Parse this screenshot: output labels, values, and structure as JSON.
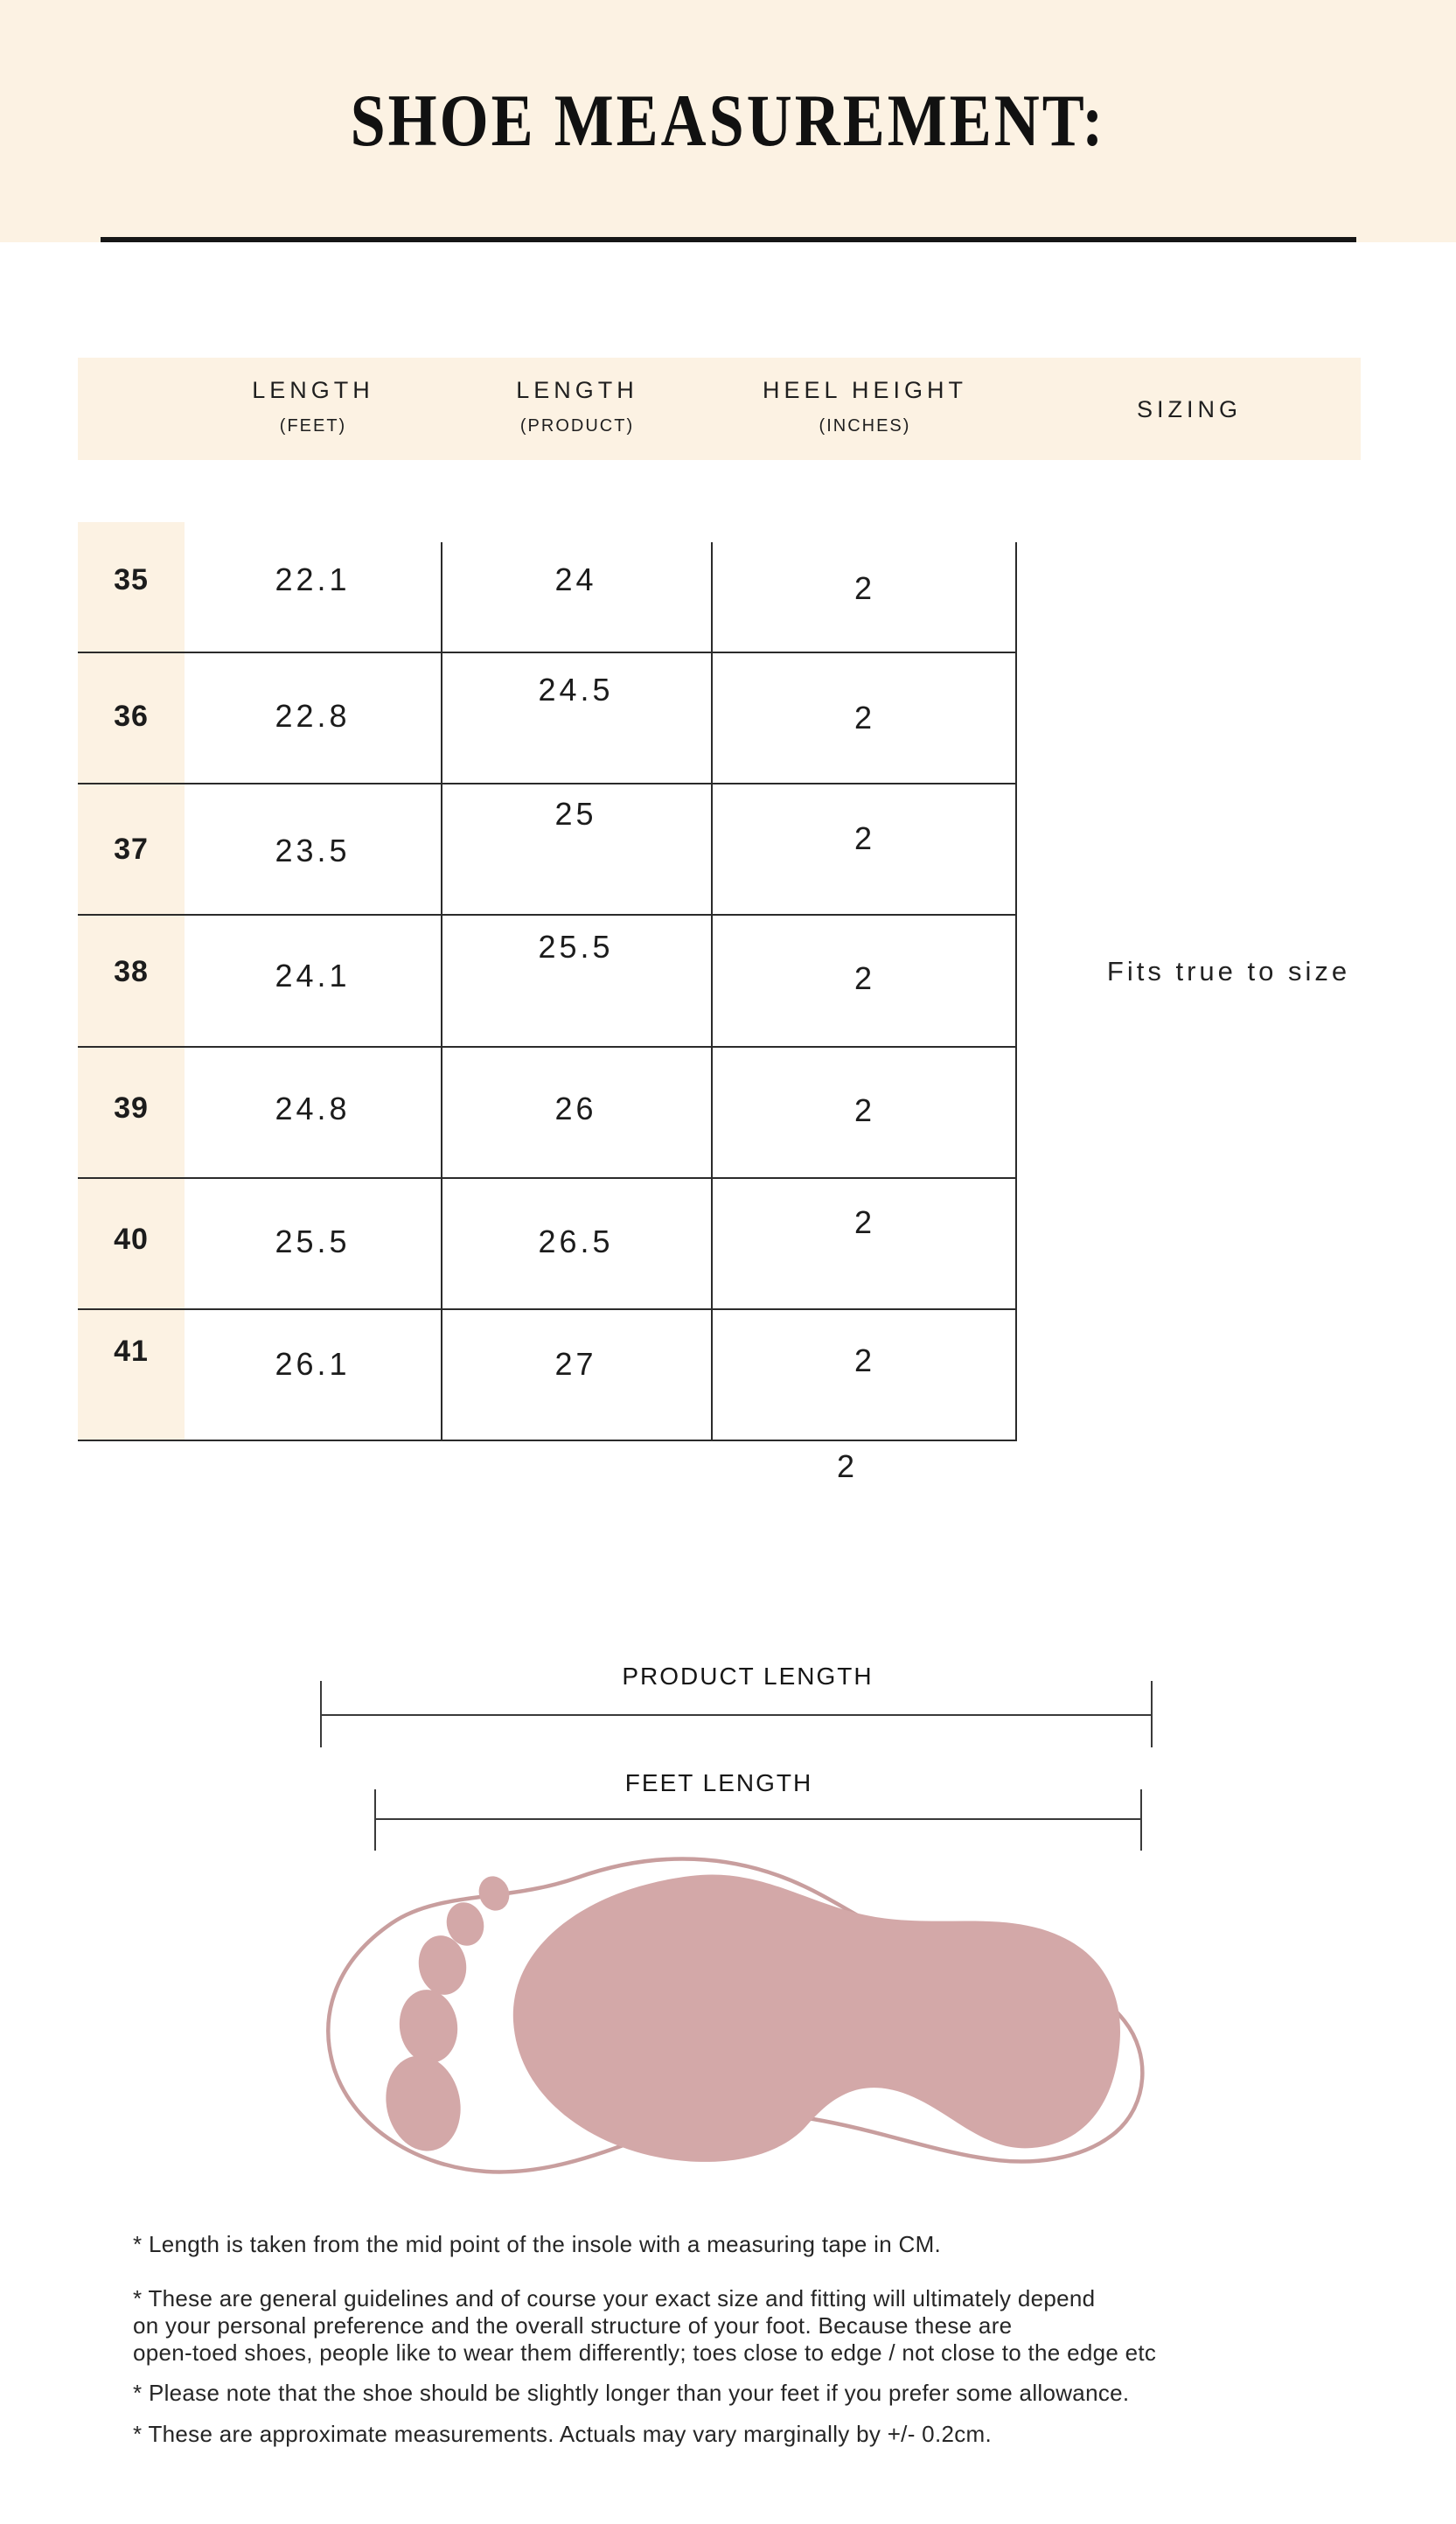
{
  "title": "SHOE MEASUREMENT:",
  "chart_data": {
    "type": "table",
    "title": "SHOE MEASUREMENT:",
    "columns": [
      {
        "label": "LENGTH",
        "sub": "(FEET)"
      },
      {
        "label": "LENGTH",
        "sub": "(PRODUCT)"
      },
      {
        "label": "HEEL HEIGHT",
        "sub": "(INCHES)"
      },
      {
        "label": "SIZING",
        "sub": ""
      }
    ],
    "rows": [
      {
        "size": "35",
        "length_feet": "22.1",
        "length_product": "24",
        "heel_height_inches": "2"
      },
      {
        "size": "36",
        "length_feet": "22.8",
        "length_product": "24.5",
        "heel_height_inches": "2"
      },
      {
        "size": "37",
        "length_feet": "23.5",
        "length_product": "25",
        "heel_height_inches": "2"
      },
      {
        "size": "38",
        "length_feet": "24.1",
        "length_product": "25.5",
        "heel_height_inches": "2"
      },
      {
        "size": "39",
        "length_feet": "24.8",
        "length_product": "26",
        "heel_height_inches": "2"
      },
      {
        "size": "40",
        "length_feet": "25.5",
        "length_product": "26.5",
        "heel_height_inches": "2"
      },
      {
        "size": "41",
        "length_feet": "26.1",
        "length_product": "27",
        "heel_height_inches": "2"
      }
    ],
    "stray_value": "2",
    "sizing_note": "Fits true to size"
  },
  "diagram": {
    "product_length_label": "PRODUCT LENGTH",
    "feet_length_label": "FEET LENGTH"
  },
  "footnotes": [
    "* Length is taken from the mid point of the insole with a measuring tape in CM.",
    "* These are general guidelines and of course your exact size and fitting will ultimately depend\non your personal preference and the overall structure of your foot. Because these are\nopen-toed shoes, people like to wear them differently; toes close to edge / not close to the edge etc",
    "* Please note that the shoe should be slightly longer than your feet if you prefer some allowance.",
    "* These are approximate measurements. Actuals may vary marginally by +/- 0.2cm."
  ],
  "colors": {
    "cream": "#fcf2e3",
    "foot_fill": "#d3a8a8",
    "foot_outline": "#c89e9e"
  }
}
